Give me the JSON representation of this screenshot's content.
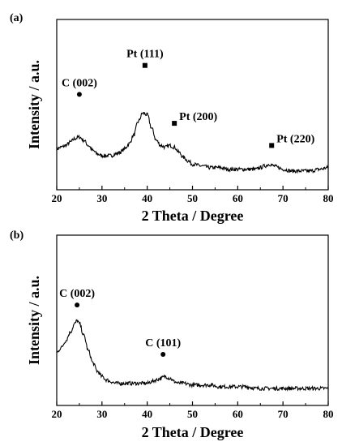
{
  "chart_data": [
    {
      "panel_label": "(a)",
      "type": "line",
      "xlabel": "2 Theta / Degree",
      "ylabel": "Intensity / a.u.",
      "xlim": [
        20,
        80
      ],
      "ylim": [
        0,
        1
      ],
      "x_ticks": [
        20,
        30,
        40,
        50,
        60,
        70,
        80
      ],
      "y_tick_labels": false,
      "grid": false,
      "series": [
        {
          "x": [
            20,
            21,
            22,
            23,
            24,
            25,
            26,
            27,
            28,
            29,
            30,
            31,
            32,
            33,
            34,
            35,
            36,
            37,
            38,
            39,
            40,
            41,
            42,
            43,
            44,
            45,
            46,
            47,
            48,
            49,
            50,
            52,
            54,
            56,
            58,
            60,
            62,
            64,
            65,
            66,
            67,
            68,
            69,
            70,
            72,
            74,
            76,
            78,
            80
          ],
          "y": [
            0.24,
            0.25,
            0.26,
            0.28,
            0.3,
            0.31,
            0.29,
            0.26,
            0.23,
            0.21,
            0.2,
            0.2,
            0.2,
            0.21,
            0.22,
            0.24,
            0.27,
            0.32,
            0.4,
            0.45,
            0.44,
            0.36,
            0.29,
            0.26,
            0.25,
            0.26,
            0.25,
            0.22,
            0.19,
            0.17,
            0.15,
            0.14,
            0.13,
            0.13,
            0.12,
            0.12,
            0.12,
            0.12,
            0.13,
            0.14,
            0.15,
            0.14,
            0.13,
            0.12,
            0.11,
            0.11,
            0.11,
            0.12,
            0.13
          ]
        }
      ],
      "annotations": [
        {
          "text": "C (002)",
          "marker": "circle",
          "x": 25,
          "y": 0.56
        },
        {
          "text": "Pt  (111)",
          "marker": "square",
          "x": 39.5,
          "y": 0.73
        },
        {
          "text": "Pt  (200)",
          "marker": "square",
          "x": 46,
          "y": 0.39
        },
        {
          "text": "Pt  (220)",
          "marker": "square",
          "x": 67.5,
          "y": 0.26
        }
      ]
    },
    {
      "panel_label": "(b)",
      "type": "line",
      "xlabel": "2 Theta / Degree",
      "ylabel": "Intensity / a.u.",
      "xlim": [
        20,
        80
      ],
      "ylim": [
        0,
        1
      ],
      "x_ticks": [
        20,
        30,
        40,
        50,
        60,
        70,
        80
      ],
      "y_tick_labels": false,
      "grid": false,
      "series": [
        {
          "x": [
            20,
            21,
            22,
            23,
            24,
            24.5,
            25,
            26,
            27,
            28,
            29,
            30,
            31,
            32,
            33,
            34,
            35,
            36,
            37,
            38,
            39,
            40,
            41,
            42,
            43,
            44,
            45,
            46,
            47,
            48,
            50,
            52,
            54,
            56,
            58,
            60,
            62,
            64,
            66,
            68,
            70,
            72,
            74,
            76,
            78,
            80
          ],
          "y": [
            0.31,
            0.34,
            0.38,
            0.43,
            0.48,
            0.5,
            0.48,
            0.41,
            0.32,
            0.25,
            0.2,
            0.17,
            0.15,
            0.14,
            0.13,
            0.13,
            0.13,
            0.13,
            0.13,
            0.13,
            0.13,
            0.13,
            0.14,
            0.15,
            0.16,
            0.17,
            0.16,
            0.14,
            0.13,
            0.13,
            0.12,
            0.12,
            0.12,
            0.11,
            0.11,
            0.11,
            0.11,
            0.1,
            0.1,
            0.1,
            0.1,
            0.1,
            0.1,
            0.1,
            0.1,
            0.1
          ]
        }
      ],
      "annotations": [
        {
          "text": "C (002)",
          "marker": "circle",
          "x": 24.5,
          "y": 0.59
        },
        {
          "text": "C (101)",
          "marker": "circle",
          "x": 43.5,
          "y": 0.3
        }
      ]
    }
  ]
}
